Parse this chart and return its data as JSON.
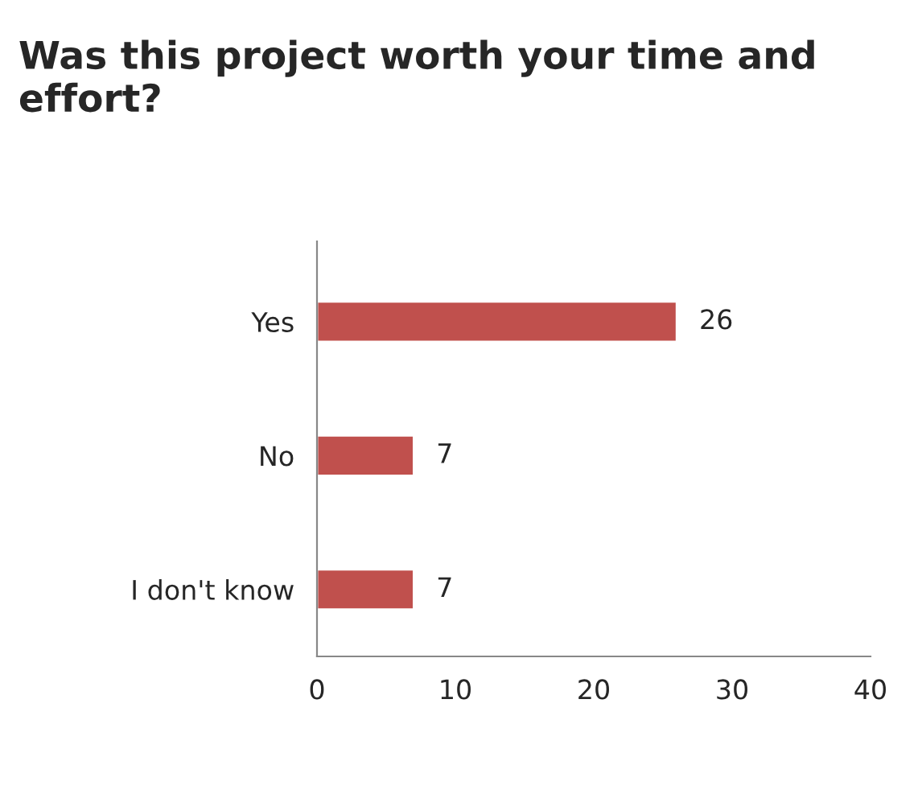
{
  "chart_data": {
    "type": "bar",
    "orientation": "horizontal",
    "title": "Was this project worth your time and effort?",
    "categories": [
      "Yes",
      "No",
      "I don't know"
    ],
    "values": [
      26,
      7,
      7
    ],
    "color": "#c0504d",
    "xlim": [
      0,
      40
    ],
    "xticks": [
      0,
      10,
      20,
      30,
      40
    ],
    "data_labels": true,
    "grid": false,
    "legend": false
  }
}
